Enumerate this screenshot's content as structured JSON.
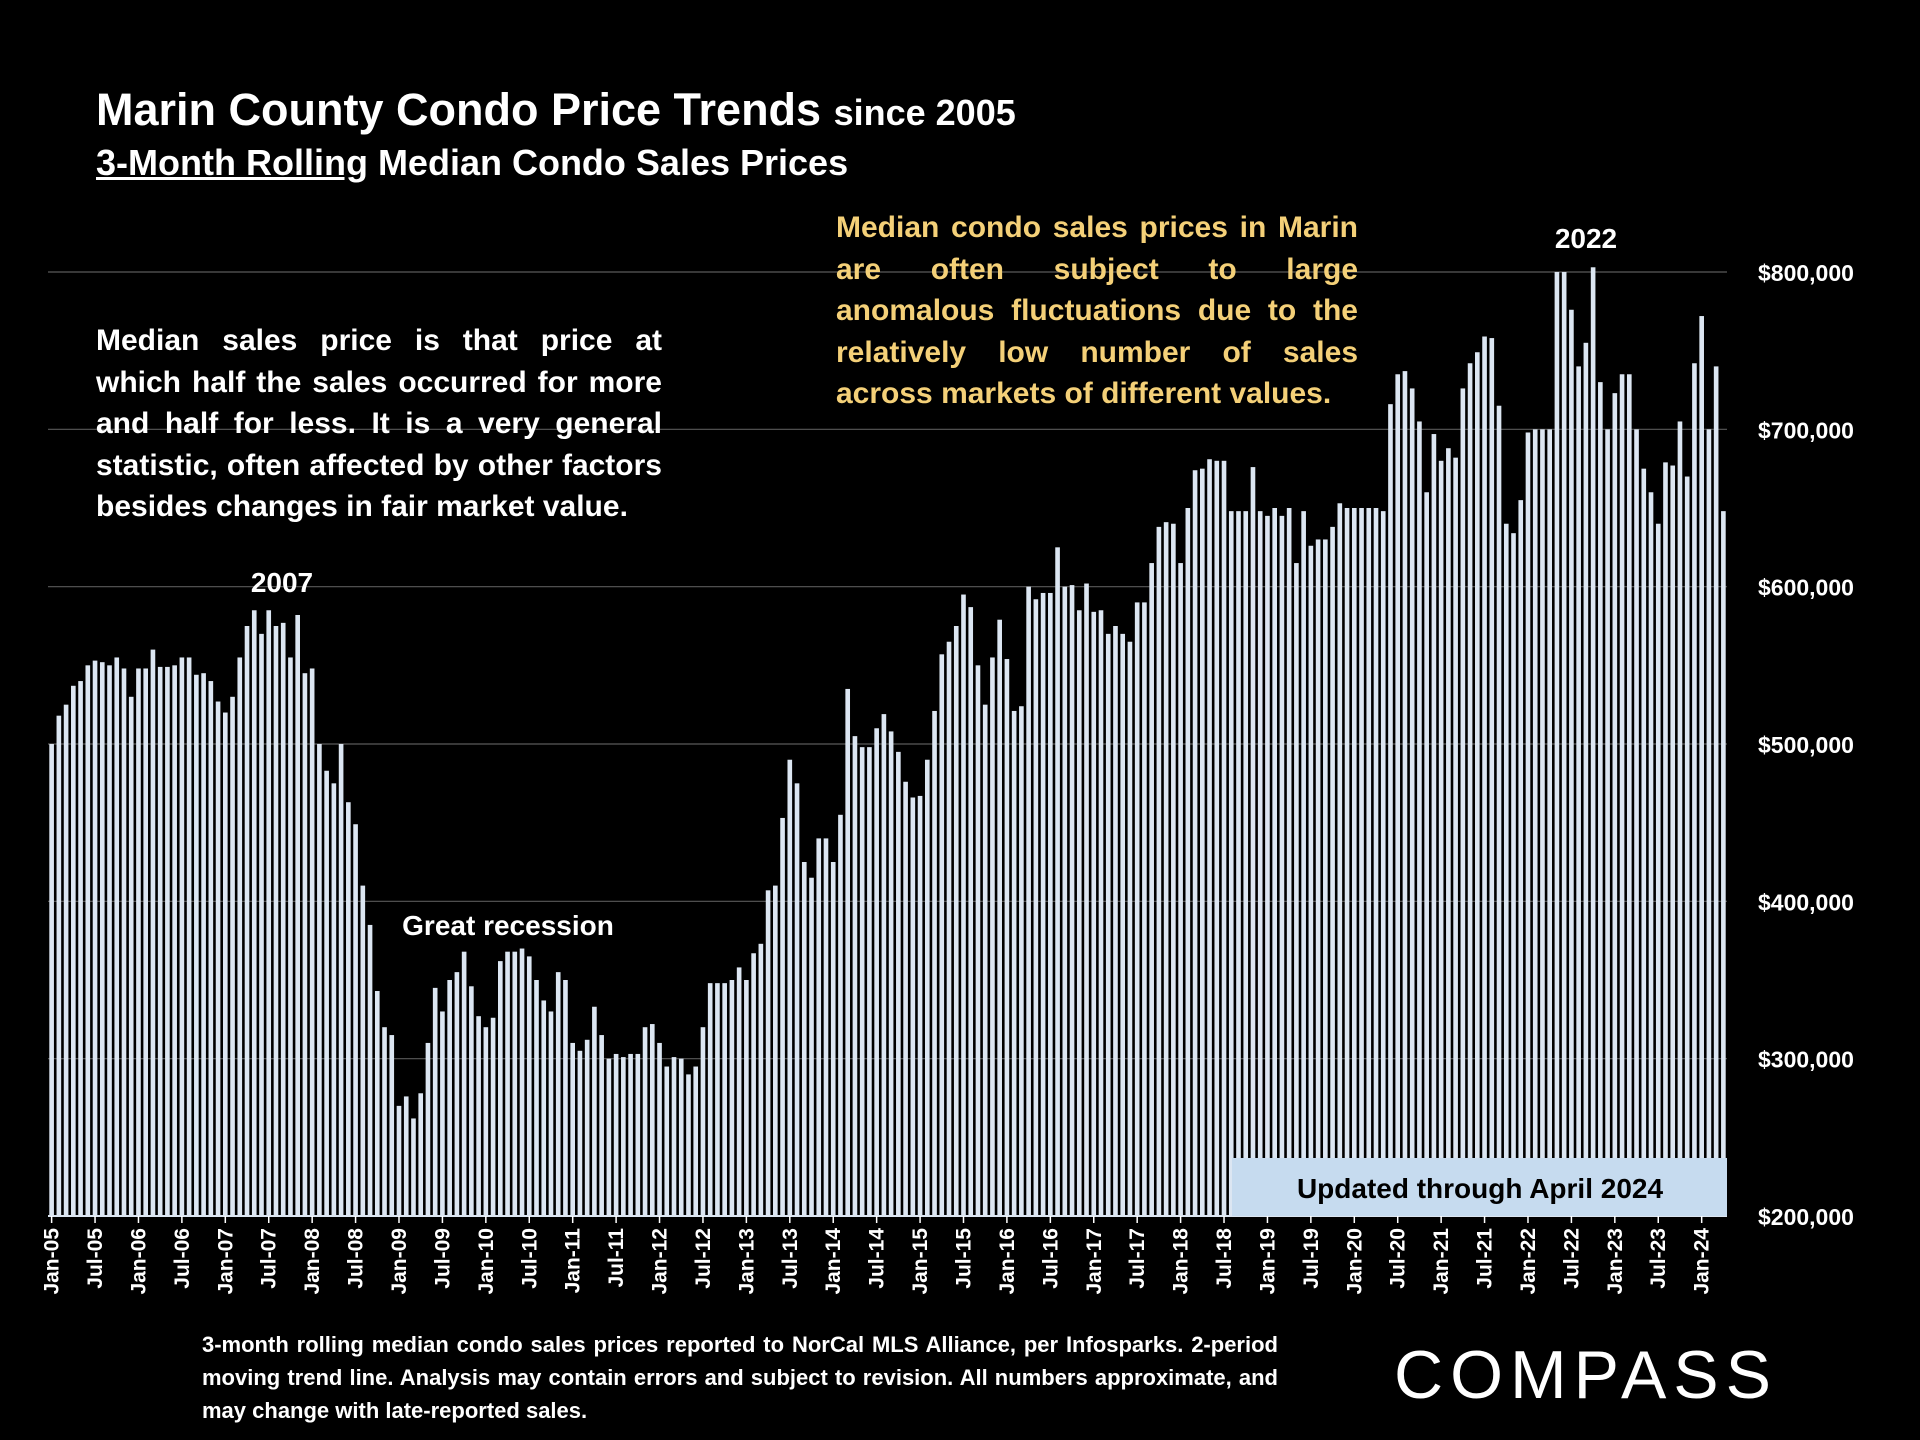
{
  "title": {
    "main": "Marin County Condo Price Trends",
    "suffix": "since 2005"
  },
  "subtitle": {
    "underlined": "3-Month Rolling",
    "rest": " Median Condo Sales Prices"
  },
  "notes": {
    "left": "Median sales price is that price at which half the sales occurred for more and half for less. It is a very general statistic, often affected by other factors besides changes in fair market value.",
    "right": "Median condo sales prices in Marin are often subject to large anomalous fluctuations due to the relatively low number of sales across markets of different values."
  },
  "footnote": "3-month rolling median condo sales prices reported to NorCal MLS Alliance, per Infosparks. 2-period moving trend line. Analysis may contain errors and subject to revision. All numbers approximate, and may change with late-reported sales.",
  "logo": {
    "text": "COMPASS"
  },
  "colors": {
    "background": "#000000",
    "bar": "#dce6f2",
    "grid": "#595959",
    "note_highlight": "#f4d078",
    "badge": "#c6dbef",
    "badge_text": "#000000"
  },
  "chart_data": {
    "type": "bar",
    "title": "Marin County Condo Price Trends since 2005",
    "subtitle": "3-Month Rolling Median Condo Sales Prices",
    "xlabel": "",
    "ylabel": "",
    "ylim": [
      200000,
      800000
    ],
    "yticks": [
      200000,
      300000,
      400000,
      500000,
      600000,
      700000,
      800000
    ],
    "ytick_labels": [
      "$200,000",
      "$300,000",
      "$400,000",
      "$500,000",
      "$600,000",
      "$700,000",
      "$800,000"
    ],
    "grid": true,
    "start": "Jan-05",
    "end": "Apr-24",
    "xtick_labels": [
      "Jan-05",
      "Jul-05",
      "Jan-06",
      "Jul-06",
      "Jan-07",
      "Jul-07",
      "Jan-08",
      "Jul-08",
      "Jan-09",
      "Jul-09",
      "Jan-10",
      "Jul-10",
      "Jan-11",
      "Jul-11",
      "Jan-12",
      "Jul-12",
      "Jan-13",
      "Jul-13",
      "Jan-14",
      "Jul-14",
      "Jan-15",
      "Jul-15",
      "Jan-16",
      "Jul-16",
      "Jan-17",
      "Jul-17",
      "Jan-18",
      "Jul-18",
      "Jan-19",
      "Jul-19",
      "Jan-20",
      "Jul-20",
      "Jan-21",
      "Jul-21",
      "Jan-22",
      "Jul-22",
      "Jan-23",
      "Jul-23",
      "Jan-24"
    ],
    "annotations": {
      "peak_2007": "2007",
      "recession": "Great recession",
      "peak_2022": "2022",
      "updated": "Updated through April 2024"
    },
    "values": [
      500000,
      518000,
      525000,
      537000,
      540000,
      550000,
      553000,
      552000,
      550000,
      555000,
      548000,
      530000,
      548000,
      548000,
      560000,
      549000,
      549000,
      550000,
      555000,
      555000,
      544000,
      545000,
      540000,
      527000,
      520000,
      530000,
      555000,
      575000,
      585000,
      570000,
      585000,
      575000,
      577000,
      555000,
      582000,
      545000,
      548000,
      500000,
      483000,
      475000,
      500000,
      463000,
      449000,
      410000,
      385000,
      343000,
      320000,
      315000,
      270000,
      276000,
      262000,
      278000,
      310000,
      345000,
      330000,
      350000,
      355000,
      368000,
      346000,
      327000,
      320000,
      326000,
      362000,
      368000,
      368000,
      370000,
      365000,
      350000,
      337000,
      330000,
      355000,
      350000,
      310000,
      305000,
      312000,
      333000,
      315000,
      300000,
      303000,
      301000,
      303000,
      303000,
      320000,
      322000,
      310000,
      295000,
      301000,
      300000,
      290000,
      295000,
      320000,
      348000,
      348000,
      348000,
      350000,
      358000,
      350000,
      367000,
      373000,
      407000,
      410000,
      453000,
      490000,
      475000,
      425000,
      415000,
      440000,
      440000,
      425000,
      455000,
      535000,
      505000,
      498000,
      498000,
      510000,
      519000,
      508000,
      495000,
      476000,
      466000,
      467000,
      490000,
      521000,
      557000,
      565000,
      575000,
      595000,
      587000,
      550000,
      525000,
      555000,
      579000,
      554000,
      521000,
      524000,
      600000,
      592000,
      596000,
      596000,
      625000,
      600000,
      601000,
      585000,
      602000,
      584000,
      585000,
      570000,
      575000,
      570000,
      565000,
      590000,
      590000,
      615000,
      638000,
      641000,
      640000,
      615000,
      650000,
      674000,
      675000,
      681000,
      680000,
      680000,
      648000,
      648000,
      648000,
      676000,
      648000,
      645000,
      650000,
      645000,
      650000,
      615000,
      648000,
      626000,
      630000,
      630000,
      638000,
      653000,
      650000,
      650000,
      650000,
      650000,
      650000,
      648000,
      716000,
      735000,
      737000,
      726000,
      705000,
      660000,
      697000,
      680000,
      688000,
      682000,
      726000,
      742000,
      749000,
      759000,
      758000,
      715000,
      640000,
      634000,
      655000,
      698000,
      700000,
      700000,
      700000,
      800000,
      800000,
      776000,
      740000,
      755000,
      803000,
      730000,
      700000,
      723000,
      735000,
      735000,
      700000,
      675000,
      660000,
      640000,
      679000,
      677000,
      705000,
      670000,
      742000,
      772000,
      700000,
      740000,
      648000
    ]
  }
}
